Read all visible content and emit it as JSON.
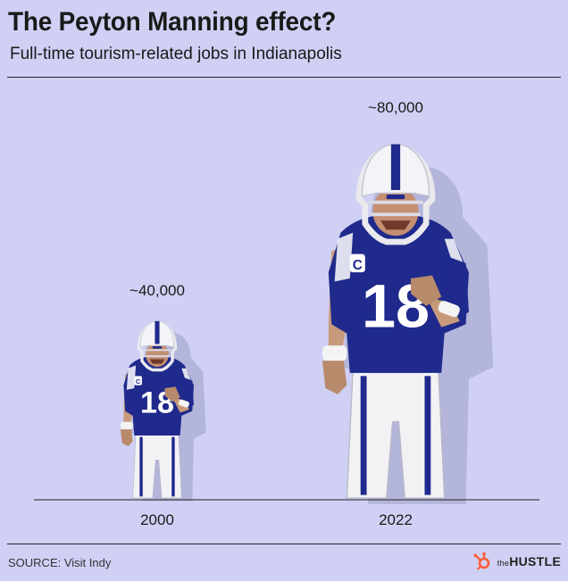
{
  "title": "The Peyton Manning effect?",
  "subtitle": "Full-time tourism-related jobs in Indianapolis",
  "source": "SOURCE: Visit Indy",
  "brand": {
    "prefix": "the",
    "name": "HUSTLE"
  },
  "colors": {
    "background": "#cfd0f4",
    "jersey": "#1f2a8c",
    "helmet_stripe": "#1f2a8c",
    "skin": "#c89a7c",
    "brand_orange": "#ff5c35"
  },
  "chart_data": {
    "type": "bar",
    "categories": [
      "2000",
      "2022"
    ],
    "values": [
      40000,
      80000
    ],
    "value_labels": [
      "~40,000",
      "~80,000"
    ],
    "title": "",
    "xlabel": "",
    "ylabel": "",
    "ylim": [
      0,
      80000
    ],
    "mark": "player-figure-scaled-by-value"
  }
}
